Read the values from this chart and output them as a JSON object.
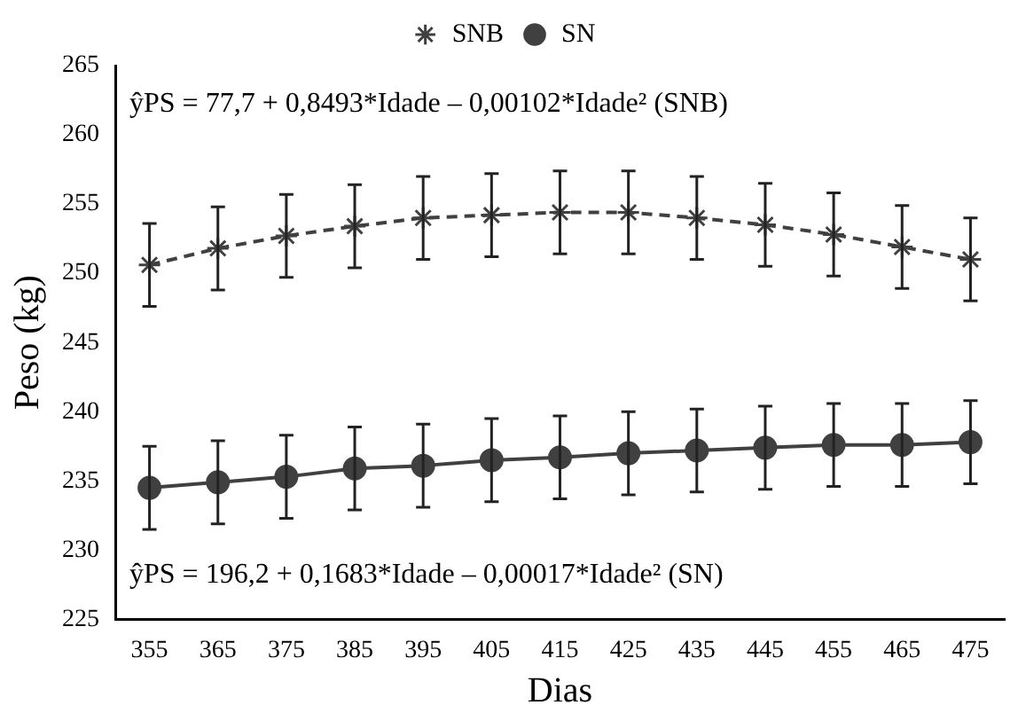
{
  "chart_data": {
    "type": "line",
    "xlabel": "Dias",
    "ylabel": "Peso (kg)",
    "categories": [
      "355",
      "365",
      "375",
      "385",
      "395",
      "405",
      "415",
      "425",
      "435",
      "445",
      "455",
      "465",
      "475"
    ],
    "series": [
      {
        "name": "SNB",
        "color": "#404040",
        "marker": "cross",
        "line_style": "dashed",
        "values": [
          250.6,
          251.8,
          252.7,
          253.4,
          254.0,
          254.2,
          254.4,
          254.4,
          254.0,
          253.5,
          252.8,
          251.9,
          251.0
        ],
        "errors": [
          3,
          3,
          3,
          3,
          3,
          3,
          3,
          3,
          3,
          3,
          3,
          3,
          3
        ]
      },
      {
        "name": "SN",
        "color": "#404040",
        "marker": "circle",
        "line_style": "solid",
        "values": [
          234.5,
          234.9,
          235.3,
          235.9,
          236.1,
          236.5,
          236.7,
          237.0,
          237.2,
          237.4,
          237.6,
          237.6,
          237.8
        ],
        "errors": [
          3,
          3,
          3,
          3,
          3,
          3,
          3,
          3,
          3,
          3,
          3,
          3,
          3
        ]
      }
    ],
    "ylim": [
      225,
      265
    ],
    "yticks": [
      225,
      230,
      235,
      240,
      245,
      250,
      255,
      260,
      265
    ],
    "grid": false,
    "legend": "top",
    "annotations": [
      "ŷPS = 77,7 + 0,8493*Idade – 0,00102*Idade² (SNB)",
      "ŷPS = 196,2 + 0,1683*Idade – 0,00017*Idade² (SN)"
    ]
  }
}
